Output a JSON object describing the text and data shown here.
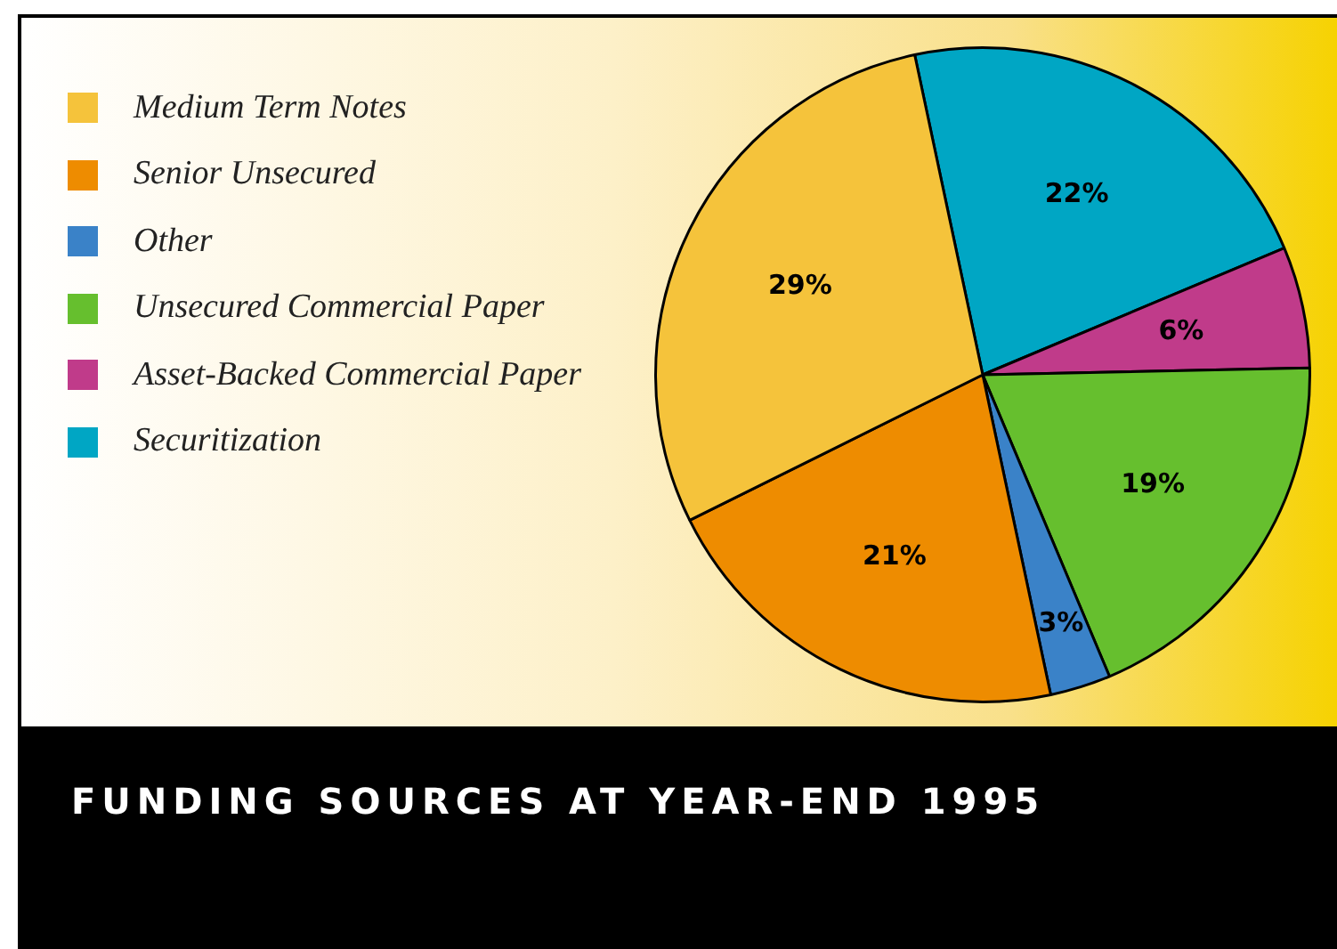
{
  "chart_data": {
    "type": "pie",
    "title": "FUNDING SOURCES AT YEAR-END 1995",
    "categories": [
      "Medium Term Notes",
      "Senior Unsecured",
      "Other",
      "Unsecured Commercial Paper",
      "Asset-Backed Commercial Paper",
      "Securitization"
    ],
    "values": [
      29,
      21,
      3,
      19,
      6,
      22
    ],
    "value_labels": [
      "29%",
      "21%",
      "3%",
      "19%",
      "6%",
      "22%"
    ],
    "colors": [
      "#f5c33b",
      "#ee8c00",
      "#3a82c8",
      "#66bf2e",
      "#c03b8a",
      "#00a6c4"
    ],
    "legend": "top left"
  }
}
